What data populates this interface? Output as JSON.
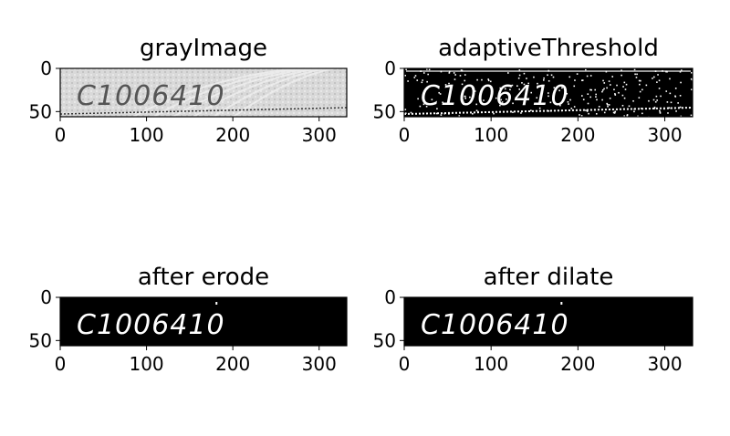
{
  "figure": {
    "panels": [
      {
        "title": "grayImage",
        "style": "gray",
        "image_text": "C1006410",
        "xticks": [
          "0",
          "100",
          "200",
          "300"
        ],
        "yticks": [
          "0",
          "50"
        ]
      },
      {
        "title": "adaptiveThreshold",
        "style": "threshold",
        "image_text": "C1006410",
        "xticks": [
          "0",
          "100",
          "200",
          "300"
        ],
        "yticks": [
          "0",
          "50"
        ]
      },
      {
        "title": "after erode",
        "style": "erode",
        "image_text": "C1006410",
        "xticks": [
          "0",
          "100",
          "200",
          "300"
        ],
        "yticks": [
          "0",
          "50"
        ]
      },
      {
        "title": "after dilate",
        "style": "dilate",
        "image_text": "C1006410",
        "xticks": [
          "0",
          "100",
          "200",
          "300"
        ],
        "yticks": [
          "0",
          "50"
        ]
      }
    ]
  },
  "chart_data": [
    {
      "type": "image",
      "title": "grayImage",
      "xlim": [
        0,
        332
      ],
      "ylim": [
        56,
        0
      ],
      "xticks": [
        0,
        100,
        200,
        300
      ],
      "yticks": [
        0,
        50
      ],
      "content": "grayscale crop of a printed code reading C1006410"
    },
    {
      "type": "image",
      "title": "adaptiveThreshold",
      "xlim": [
        0,
        332
      ],
      "ylim": [
        56,
        0
      ],
      "xticks": [
        0,
        100,
        200,
        300
      ],
      "yticks": [
        0,
        50
      ],
      "content": "binary adaptive threshold, white text C1006410 on black with noise speckles"
    },
    {
      "type": "image",
      "title": "after erode",
      "xlim": [
        0,
        332
      ],
      "ylim": [
        56,
        0
      ],
      "xticks": [
        0,
        100,
        200,
        300
      ],
      "yticks": [
        0,
        50
      ],
      "content": "eroded binary image, thin white C1006410 on black"
    },
    {
      "type": "image",
      "title": "after dilate",
      "xlim": [
        0,
        332
      ],
      "ylim": [
        56,
        0
      ],
      "xticks": [
        0,
        100,
        200,
        300
      ],
      "yticks": [
        0,
        50
      ],
      "content": "dilated binary image, white C1006410 on black"
    }
  ]
}
